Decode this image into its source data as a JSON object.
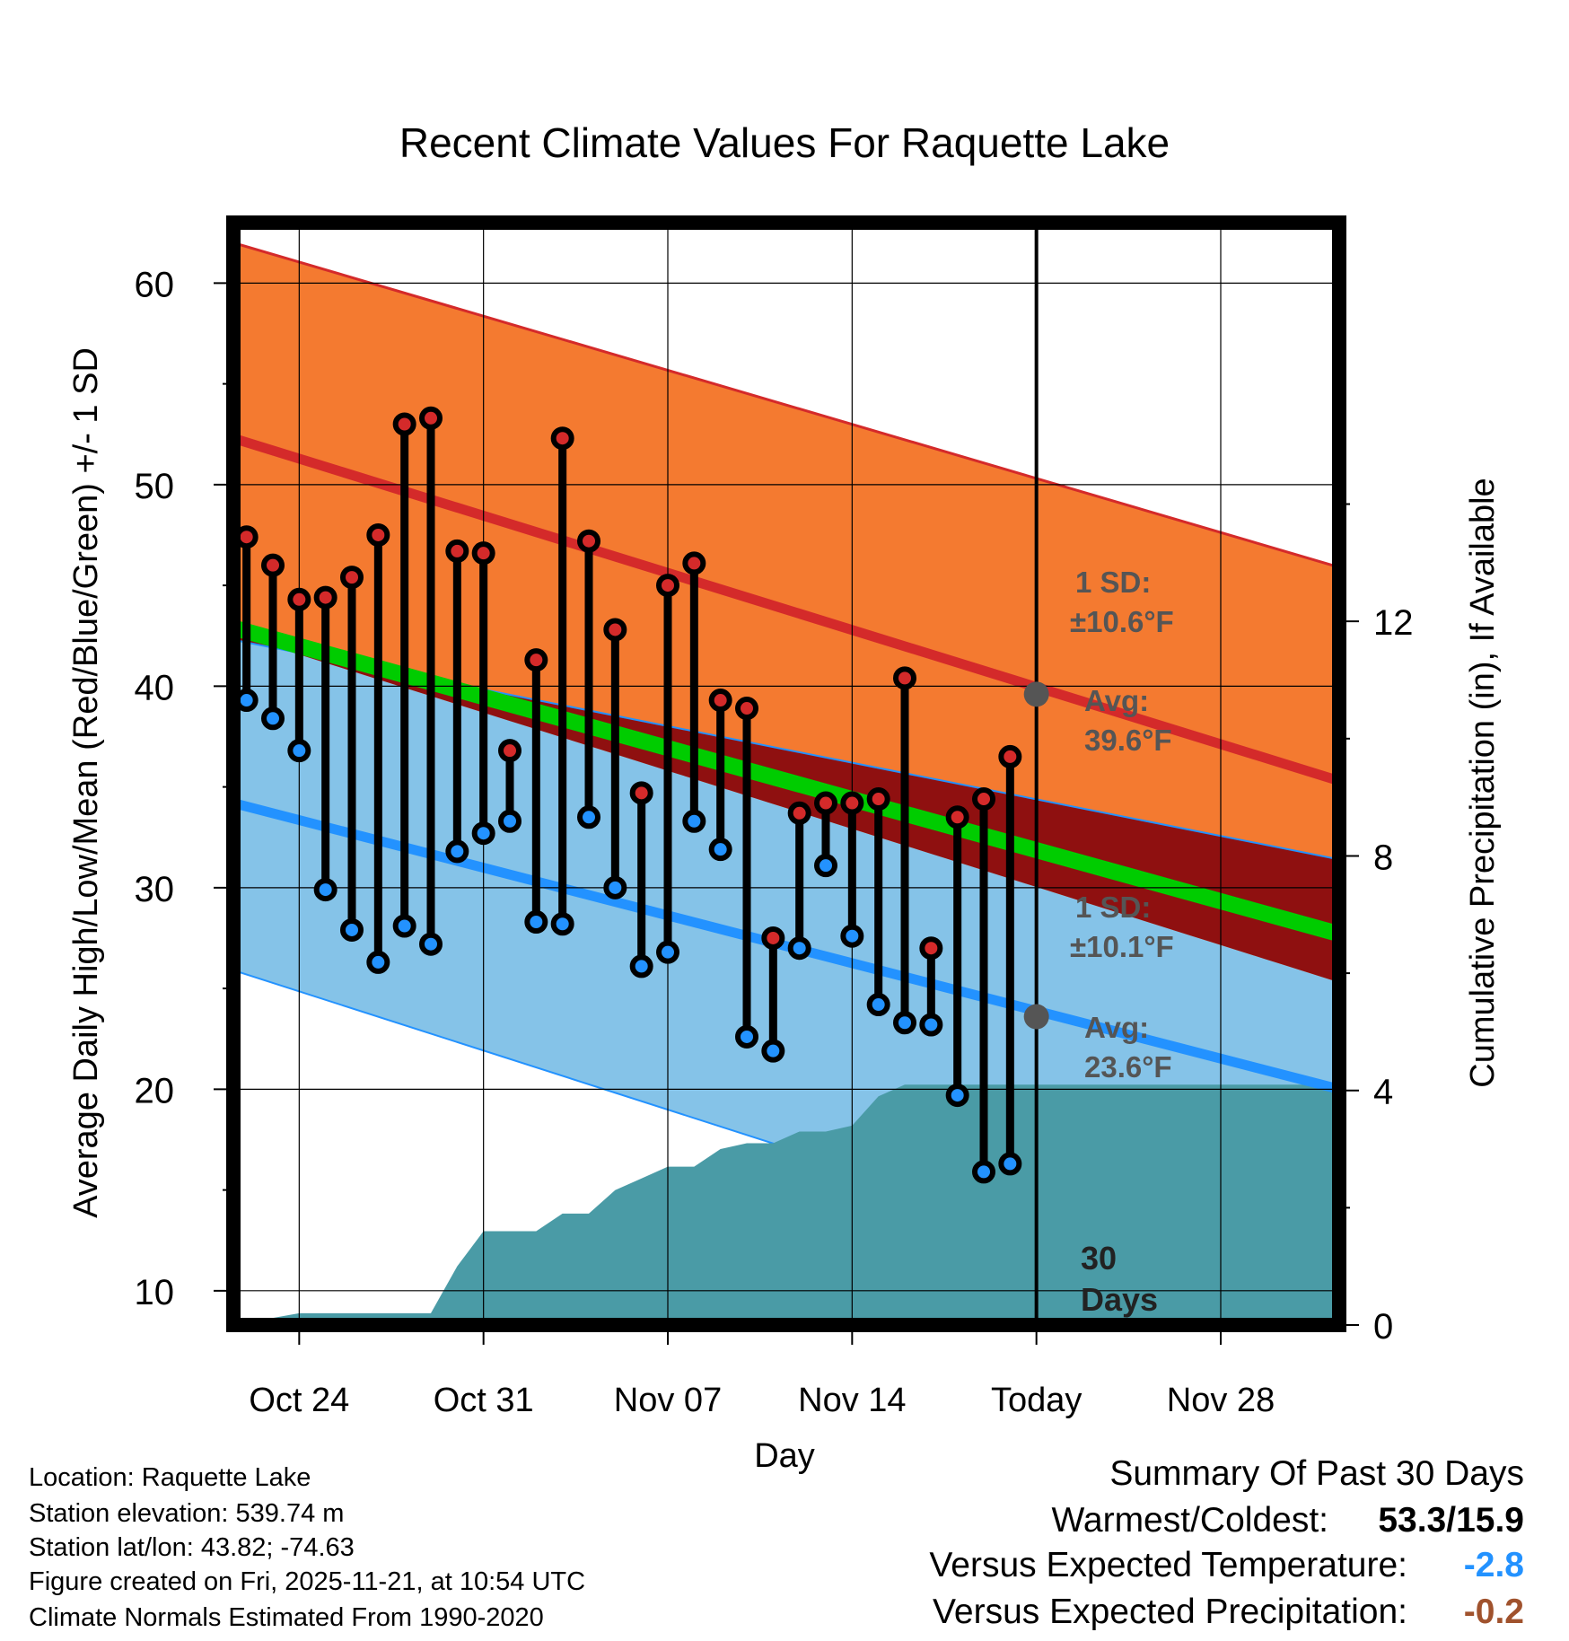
{
  "chart_data": {
    "type": "line",
    "title": "Recent Climate Values For Raquette Lake",
    "xlabel": "Day",
    "ylabel": "Average Daily High/Low/Mean (Red/Blue/Green) +/- 1 SD",
    "ylabel_right": "Cumulative Precipitation (in), If Available",
    "ylim": [
      8.3,
      63
    ],
    "ylim_right": [
      0,
      18.8
    ],
    "xlim": [
      -12.5,
      29.5
    ],
    "x_ticks": [
      {
        "day": -10,
        "label": "Oct 24"
      },
      {
        "day": -3,
        "label": "Oct 31"
      },
      {
        "day": 4,
        "label": "Nov 07"
      },
      {
        "day": 11,
        "label": "Nov 14"
      },
      {
        "day": 18,
        "label": "Today"
      },
      {
        "day": 25,
        "label": "Nov 28"
      }
    ],
    "y_ticks": [
      10,
      20,
      30,
      40,
      50,
      60
    ],
    "y_ticks_right": [
      0,
      4,
      8,
      12
    ],
    "today_day": 18,
    "days": [
      -11,
      -10,
      -9,
      -8,
      -7,
      -6,
      -5,
      -4,
      -3,
      -2,
      -1,
      0,
      1,
      2,
      3,
      4,
      5,
      6,
      7,
      8,
      9,
      10,
      11,
      12,
      13,
      14,
      15,
      16,
      17
    ],
    "observed_high": [
      47.4,
      46.0,
      44.3,
      44.4,
      45.4,
      47.5,
      53.0,
      53.3,
      46.7,
      46.6,
      36.8,
      41.3,
      52.3,
      47.2,
      42.8,
      34.7,
      45.0,
      46.1,
      39.3,
      38.9,
      27.5,
      33.7,
      34.2,
      34.2,
      34.4,
      40.4,
      27.0,
      33.5,
      34.4,
      36.5
    ],
    "observed_low": [
      39.3,
      38.4,
      36.8,
      29.9,
      27.9,
      26.3,
      28.1,
      27.2,
      31.8,
      32.7,
      33.3,
      28.3,
      28.2,
      33.5,
      30.0,
      26.1,
      26.8,
      33.3,
      31.9,
      22.6,
      21.9,
      27.0,
      31.1,
      27.6,
      24.2,
      23.3,
      23.2,
      19.7,
      15.9,
      16.3
    ],
    "obs_days": [
      -12,
      -11,
      -10,
      -9,
      -8,
      -7,
      -6,
      -5,
      -4,
      -3,
      -2,
      -1,
      0,
      1,
      2,
      3,
      4,
      5,
      6,
      7,
      8,
      9,
      10,
      11,
      12,
      13,
      14,
      15,
      16,
      17
    ],
    "normal_high": {
      "start": 52.3,
      "end": 35.3,
      "x_start": -12.5,
      "x_end": 29.5
    },
    "normal_high_upper": {
      "start": 62.0,
      "end": 45.9
    },
    "normal_high_lower": {
      "start": 42.6,
      "end": 25.3
    },
    "normal_low": {
      "start": 34.2,
      "end": 20.0
    },
    "normal_low_upper": {
      "start": 42.3,
      "end": 31.4
    },
    "normal_low_lower": {
      "start": 25.9,
      "end": 8.3
    },
    "normal_mean": {
      "start": 42.9,
      "end": 27.7
    },
    "precip_cumulative": {
      "days": [
        -12.5,
        -10,
        -9,
        -8,
        -7,
        -6,
        -5,
        -4,
        -3,
        -2,
        -1,
        0,
        1,
        2,
        3,
        4,
        5,
        6,
        7,
        8,
        9,
        10,
        11,
        12,
        13,
        14,
        15,
        16,
        17,
        18,
        29.5
      ],
      "values": [
        0,
        0.2,
        0.2,
        0.2,
        0.2,
        0.2,
        0.2,
        1.0,
        1.6,
        1.6,
        1.6,
        1.9,
        1.9,
        2.3,
        2.5,
        2.7,
        2.7,
        3.0,
        3.1,
        3.1,
        3.3,
        3.3,
        3.4,
        3.9,
        4.1,
        4.1,
        4.1,
        4.1,
        4.1,
        4.1,
        4.1
      ]
    },
    "annotations": {
      "high_sd": "1 SD:",
      "high_sd_value": "±10.6°F",
      "high_avg": "Avg:",
      "high_avg_value": "39.6°F",
      "high_avg_marker_value": 39.6,
      "low_sd": "1 SD:",
      "low_sd_value": "±10.1°F",
      "low_avg": "Avg:",
      "low_avg_value": "23.6°F",
      "low_avg_marker_value": 23.6,
      "days_label_1": "30",
      "days_label_2": "Days"
    },
    "colors": {
      "high_band": "#f47a30",
      "high_line": "#d42a2a",
      "low_band": "#85c3e8",
      "low_line": "#2392ff",
      "mean_line": "#00cc00",
      "overlap": "#8f1010",
      "precip": "#4a9ba6",
      "high_dot": "#d42a2a",
      "low_dot": "#2392ff",
      "annotation": "#555555"
    }
  },
  "info": {
    "location": "Location: Raquette Lake",
    "elevation": "Station elevation: 539.74 m",
    "latlon": "Station lat/lon: 43.82; -74.63",
    "created": "Figure created on Fri, 2025-11-21, at 10:54 UTC",
    "normals": "Climate Normals Estimated From 1990-2020"
  },
  "summary": {
    "title": "Summary Of Past 30 Days",
    "warmest_label": "Warmest/Coldest:",
    "warmest_value": "53.3/15.9",
    "temp_label": "Versus Expected Temperature:",
    "temp_value": "-2.8",
    "temp_color": "#2392ff",
    "precip_label": "Versus Expected Precipitation:",
    "precip_value": "-0.2",
    "precip_color": "#a0522d"
  }
}
